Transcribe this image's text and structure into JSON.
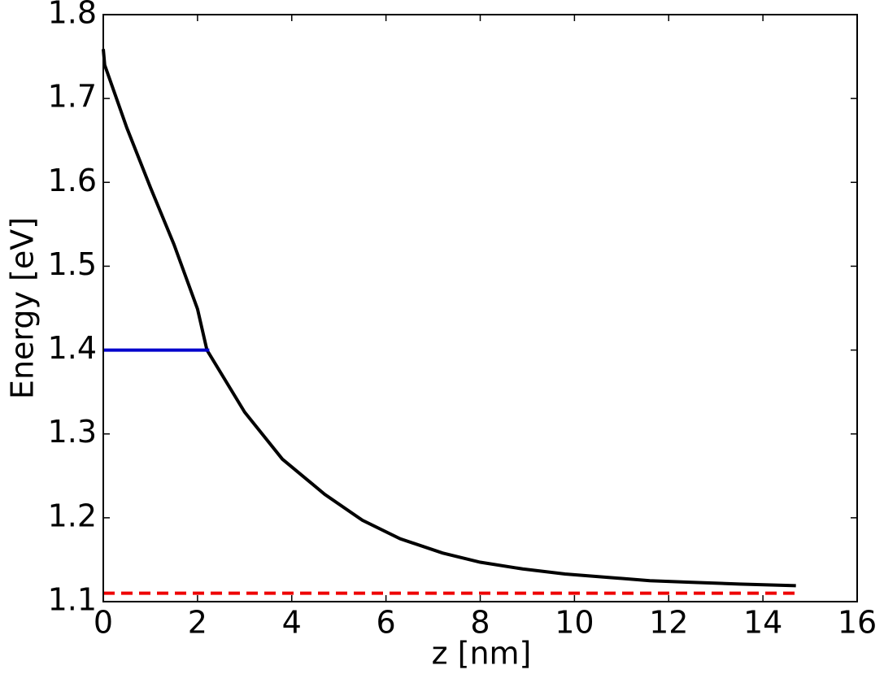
{
  "chart_data": {
    "type": "line",
    "xlabel": "z [nm]",
    "ylabel": "Energy [eV]",
    "xlim": [
      0,
      16
    ],
    "ylim": [
      1.1,
      1.8
    ],
    "xticks": [
      0,
      2,
      4,
      6,
      8,
      10,
      12,
      14,
      16
    ],
    "yticks": [
      1.1,
      1.2,
      1.3,
      1.4,
      1.5,
      1.6,
      1.7,
      1.8
    ],
    "series": [
      {
        "color": "#000000",
        "style": "solid",
        "x": [
          0,
          0.03,
          0.5,
          1.0,
          1.5,
          2.0,
          2.2,
          3.0,
          3.8,
          4.7,
          5.5,
          6.3,
          7.2,
          8.0,
          8.9,
          9.8,
          10.7,
          11.6,
          12.5,
          13.5,
          14.7
        ],
        "values": [
          1.759,
          1.74,
          1.665,
          1.594,
          1.526,
          1.449,
          1.4,
          1.326,
          1.27,
          1.228,
          1.197,
          1.175,
          1.158,
          1.147,
          1.139,
          1.133,
          1.129,
          1.125,
          1.123,
          1.121,
          1.119
        ]
      },
      {
        "color": "#0000cc",
        "style": "solid",
        "x": [
          0,
          2.25
        ],
        "values": [
          1.4,
          1.4
        ]
      },
      {
        "color": "#ee0000",
        "style": "dashed",
        "x": [
          0,
          14.7
        ],
        "values": [
          1.11,
          1.11
        ]
      }
    ]
  }
}
